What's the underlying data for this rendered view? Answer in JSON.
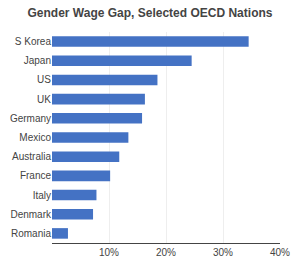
{
  "chart_data": {
    "type": "bar",
    "orientation": "horizontal",
    "title": "Gender Wage Gap, Selected OECD Nations",
    "categories": [
      "S Korea",
      "Japan",
      "US",
      "UK",
      "Germany",
      "Mexico",
      "Australia",
      "France",
      "Italy",
      "Denmark",
      "Romania"
    ],
    "values": [
      0.345,
      0.245,
      0.185,
      0.163,
      0.158,
      0.134,
      0.118,
      0.102,
      0.078,
      0.072,
      0.028
    ],
    "color": "#4472C4",
    "xlim": [
      0,
      0.4
    ],
    "xticks": [
      {
        "value": 0.1,
        "label": "10%"
      },
      {
        "value": 0.2,
        "label": "20%"
      },
      {
        "value": 0.3,
        "label": "30%"
      },
      {
        "value": 0.4,
        "label": "40%"
      }
    ],
    "grid": true
  }
}
